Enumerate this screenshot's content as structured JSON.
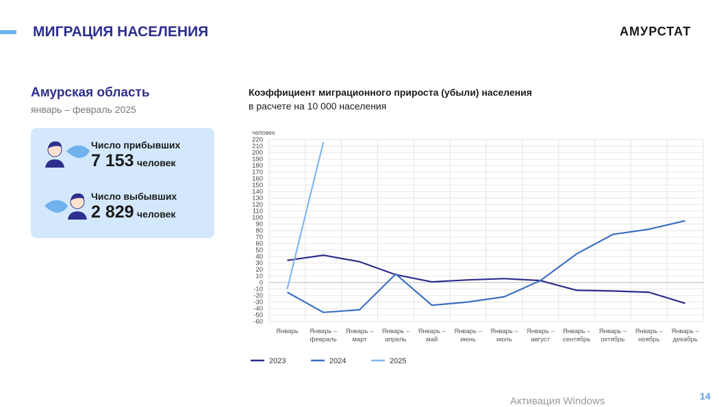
{
  "header": {
    "title": "МИГРАЦИЯ НАСЕЛЕНИЯ",
    "brand": "АМУРСТАТ"
  },
  "panel": {
    "region": "Амурская область",
    "period": "январь – февраль 2025",
    "items": [
      {
        "label": "Число прибывших",
        "value": "7 153",
        "unit": "человек"
      },
      {
        "label": "Число выбывших",
        "value": "2 829",
        "unit": "человек"
      }
    ]
  },
  "chart_data": {
    "type": "line",
    "title": "Коэффициент миграционного прироста (убыли) населения",
    "subtitle": "в расчете на 10 000 населения",
    "y_label": "человек",
    "categories": [
      "Январь",
      "Январь – февраль",
      "Январь – март",
      "Январь – апрель",
      "Январь – май",
      "Январь – июнь",
      "Январь – июль",
      "Январь – август",
      "Январь – сентябрь",
      "Январь – октябрь",
      "Январь – ноябрь",
      "Январь – декабрь"
    ],
    "series": [
      {
        "name": "2023",
        "color": "#2b2a8c",
        "values": [
          34,
          42,
          32,
          12,
          1,
          4,
          6,
          3,
          -12,
          -13,
          -15,
          -32
        ]
      },
      {
        "name": "2024",
        "color": "#3a6fc1",
        "values": [
          -15,
          -46,
          -42,
          13,
          -35,
          -30,
          -22,
          3,
          44,
          74,
          82,
          95
        ]
      },
      {
        "name": "2025",
        "color": "#7fb6ec",
        "values": [
          -10,
          216,
          null,
          null,
          null,
          null,
          null,
          null,
          null,
          null,
          null,
          null
        ]
      }
    ],
    "ylim": [
      -60,
      220
    ],
    "yticks": [
      -60,
      -50,
      -40,
      -30,
      -20,
      -10,
      0,
      10,
      20,
      30,
      40,
      50,
      60,
      70,
      80,
      90,
      100,
      110,
      120,
      130,
      140,
      150,
      160,
      170,
      180,
      190,
      200,
      210,
      220
    ],
    "grid": true,
    "legend": "bottom"
  },
  "footer": {
    "page": "14",
    "watermark": "Активация Windows"
  }
}
